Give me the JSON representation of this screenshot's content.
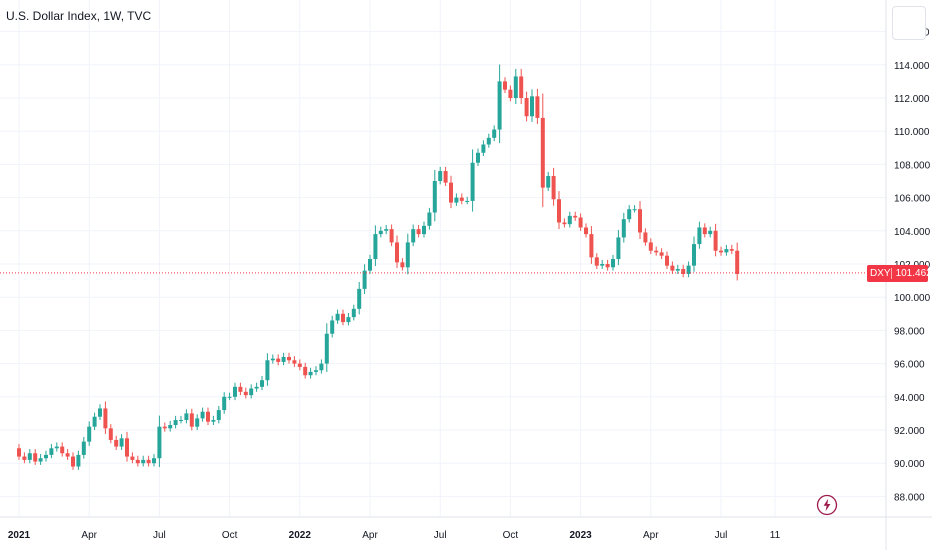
{
  "header": {
    "title": "U.S. Dollar Index, 1W, TVC"
  },
  "price_tag": {
    "symbol": "DXY",
    "value": "101.462"
  },
  "colors": {
    "up": "#26a69a",
    "down": "#ef5350",
    "price_line": "#f23645",
    "grid": "#f0f3fa",
    "axis_text": "#131722"
  },
  "icons": {
    "flash": "lightning-bolt-icon",
    "corner": "chart-settings-button"
  },
  "chart_data": {
    "type": "candlestick",
    "title": "U.S. Dollar Index, 1W, TVC",
    "ylim": [
      87.0,
      117.0
    ],
    "y_ticks": [
      "88.000",
      "90.000",
      "92.000",
      "94.000",
      "96.000",
      "98.000",
      "100.000",
      "102.000",
      "104.000",
      "106.000",
      "108.000",
      "110.000",
      "112.000",
      "114.000",
      "116.000"
    ],
    "x_ticks": [
      {
        "label": "2021",
        "week": 0
      },
      {
        "label": "Apr",
        "week": 13
      },
      {
        "label": "Jul",
        "week": 26
      },
      {
        "label": "Oct",
        "week": 39
      },
      {
        "label": "2022",
        "week": 52
      },
      {
        "label": "Apr",
        "week": 65
      },
      {
        "label": "Jul",
        "week": 78
      },
      {
        "label": "Oct",
        "week": 91
      },
      {
        "label": "2023",
        "week": 104
      },
      {
        "label": "Apr",
        "week": 117
      },
      {
        "label": "Jul",
        "week": 130
      },
      {
        "label": "11",
        "week": 140
      }
    ],
    "last_price": 101.462,
    "closes": [
      90.4,
      90.2,
      90.6,
      90.1,
      90.3,
      90.5,
      90.9,
      91.0,
      90.6,
      90.4,
      89.8,
      90.5,
      91.3,
      92.2,
      92.8,
      93.3,
      92.1,
      91.4,
      91.0,
      91.5,
      90.4,
      90.2,
      90.0,
      90.2,
      90.0,
      90.3,
      92.2,
      92.1,
      92.3,
      92.6,
      92.6,
      93.0,
      92.2,
      92.7,
      93.1,
      92.5,
      92.6,
      93.2,
      94.0,
      94.0,
      94.6,
      94.3,
      94.1,
      94.5,
      94.6,
      95.0,
      96.2,
      96.3,
      96.1,
      96.4,
      96.2,
      96.0,
      95.8,
      95.3,
      95.5,
      95.6,
      96.0,
      97.8,
      98.6,
      99.0,
      98.5,
      98.8,
      99.3,
      100.5,
      101.6,
      102.3,
      103.8,
      104.0,
      104.1,
      103.3,
      102.1,
      101.8,
      103.3,
      104.1,
      103.8,
      104.3,
      105.1,
      107.0,
      107.6,
      106.9,
      105.7,
      106.0,
      105.8,
      105.8,
      108.1,
      108.7,
      109.2,
      109.6,
      110.1,
      113.0,
      112.5,
      112.0,
      113.3,
      112.0,
      110.9,
      112.1,
      110.8,
      106.6,
      107.3,
      105.9,
      104.5,
      104.4,
      104.9,
      104.8,
      104.2,
      103.8,
      102.4,
      101.9,
      102.0,
      101.8,
      102.3,
      103.6,
      104.7,
      105.3,
      105.3,
      103.9,
      103.3,
      102.8,
      102.7,
      102.5,
      101.9,
      101.6,
      101.7,
      101.4,
      101.9,
      103.2,
      104.2,
      103.8,
      104.0,
      102.8,
      102.7,
      102.9,
      102.8,
      101.4
    ]
  }
}
